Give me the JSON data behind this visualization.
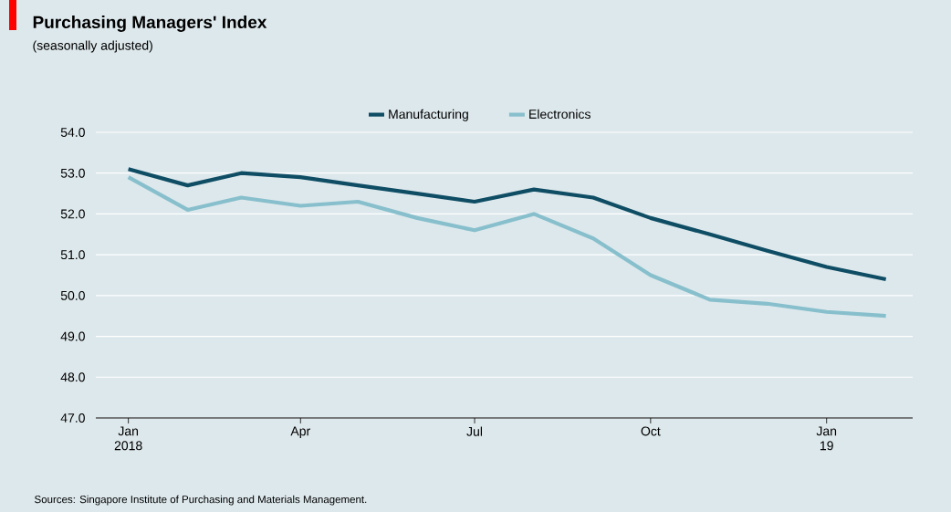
{
  "chart_data": {
    "type": "line",
    "title": "Purchasing Managers' Index",
    "subtitle": "(seasonally adjusted)",
    "x": [
      "2018-01",
      "2018-02",
      "2018-03",
      "2018-04",
      "2018-05",
      "2018-06",
      "2018-07",
      "2018-08",
      "2018-09",
      "2018-10",
      "2018-11",
      "2018-12",
      "2019-01",
      "2019-02"
    ],
    "series": [
      {
        "name": "Manufacturing",
        "color": "#0e4d64",
        "values": [
          53.1,
          52.7,
          53.0,
          52.9,
          52.7,
          52.5,
          52.3,
          52.6,
          52.4,
          51.9,
          51.5,
          51.1,
          50.7,
          50.4
        ]
      },
      {
        "name": "Electronics",
        "color": "#87bfcc",
        "values": [
          52.9,
          52.1,
          52.4,
          52.2,
          52.3,
          51.9,
          51.6,
          52.0,
          51.4,
          50.5,
          49.9,
          49.8,
          49.6,
          49.5
        ]
      }
    ],
    "xlim": [
      "2017-12-15",
      "2019-02-15"
    ],
    "xticks": [
      {
        "value": "2018-01",
        "label": "Jan 2018"
      },
      {
        "value": "2018-04",
        "label": "Apr"
      },
      {
        "value": "2018-07",
        "label": "Jul"
      },
      {
        "value": "2018-10",
        "label": "Oct"
      },
      {
        "value": "2019-01",
        "label": "Jan 19"
      }
    ],
    "ylim": [
      47,
      54
    ],
    "yticks": [
      {
        "value": 47,
        "label": "47.0"
      },
      {
        "value": 48,
        "label": "48.0"
      },
      {
        "value": 49,
        "label": "49.0"
      },
      {
        "value": 50,
        "label": "50.0"
      },
      {
        "value": 51,
        "label": "51.0"
      },
      {
        "value": 52,
        "label": "52.0"
      },
      {
        "value": 53,
        "label": "53.0"
      },
      {
        "value": 54,
        "label": "54.0"
      }
    ],
    "grid": "y",
    "legend": "top",
    "marker": "none",
    "line_style": "solid",
    "annotations": [
      "Sources: Singapore Institute of Purchasing and Materials Management."
    ]
  }
}
